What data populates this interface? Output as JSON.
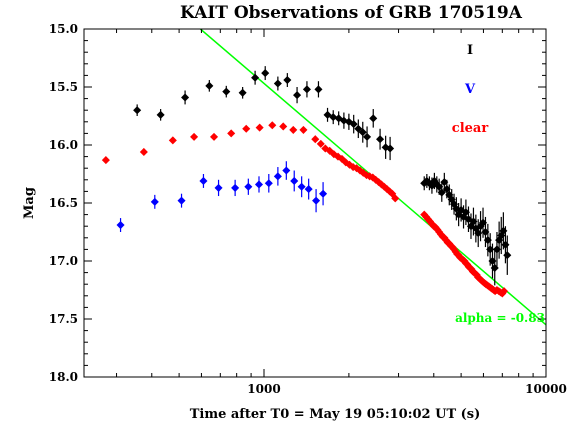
{
  "chart_data": {
    "type": "scatter",
    "title": "KAIT Observations of GRB 170519A",
    "xlabel": "Time after T0 = May 19  05:10:02 UT (s)",
    "ylabel": "Mag",
    "x_scale": "log",
    "xlim": [
      230,
      10000
    ],
    "ylim": [
      18.0,
      15.0
    ],
    "x_tick_labels": [
      {
        "value": 1000,
        "label": "1000"
      },
      {
        "value": 10000,
        "label": "10000"
      }
    ],
    "y_tick_labels": [
      {
        "value": 15.0,
        "label": "15.0"
      },
      {
        "value": 15.5,
        "label": "15.5"
      },
      {
        "value": 16.0,
        "label": "16.0"
      },
      {
        "value": 16.5,
        "label": "16.5"
      },
      {
        "value": 17.0,
        "label": "17.0"
      },
      {
        "value": 17.5,
        "label": "17.5"
      },
      {
        "value": 18.0,
        "label": "18.0"
      }
    ],
    "legend": {
      "placement": "top-right",
      "entries": [
        {
          "label": "I",
          "color": "#000000"
        },
        {
          "label": "V",
          "color": "#0000ff"
        },
        {
          "label": "clear",
          "color": "#ff0000"
        }
      ]
    },
    "series": [
      {
        "name": "I",
        "color": "#000000",
        "points": [
          [
            355,
            15.7,
            0.05
          ],
          [
            430,
            15.74,
            0.05
          ],
          [
            525,
            15.59,
            0.06
          ],
          [
            640,
            15.49,
            0.05
          ],
          [
            735,
            15.54,
            0.05
          ],
          [
            840,
            15.55,
            0.05
          ],
          [
            930,
            15.42,
            0.06
          ],
          [
            1010,
            15.38,
            0.06
          ],
          [
            1120,
            15.47,
            0.06
          ],
          [
            1210,
            15.44,
            0.06
          ],
          [
            1310,
            15.57,
            0.07
          ],
          [
            1420,
            15.52,
            0.07
          ],
          [
            1560,
            15.52,
            0.07
          ],
          [
            1680,
            15.74,
            0.06
          ],
          [
            1760,
            15.76,
            0.06
          ],
          [
            1840,
            15.77,
            0.06
          ],
          [
            1920,
            15.79,
            0.07
          ],
          [
            2000,
            15.8,
            0.07
          ],
          [
            2080,
            15.82,
            0.08
          ],
          [
            2160,
            15.86,
            0.08
          ],
          [
            2240,
            15.89,
            0.09
          ],
          [
            2320,
            15.93,
            0.09
          ],
          [
            2440,
            15.77,
            0.08
          ],
          [
            2580,
            15.95,
            0.09
          ],
          [
            2700,
            16.02,
            0.1
          ],
          [
            2800,
            16.03,
            0.1
          ],
          [
            3700,
            16.33,
            0.06
          ],
          [
            3780,
            16.31,
            0.06
          ],
          [
            3860,
            16.33,
            0.06
          ],
          [
            3940,
            16.35,
            0.07
          ],
          [
            4020,
            16.31,
            0.07
          ],
          [
            4100,
            16.34,
            0.07
          ],
          [
            4180,
            16.36,
            0.07
          ],
          [
            4270,
            16.41,
            0.08
          ],
          [
            4360,
            16.32,
            0.08
          ],
          [
            4450,
            16.38,
            0.08
          ],
          [
            4540,
            16.43,
            0.09
          ],
          [
            4630,
            16.47,
            0.09
          ],
          [
            4720,
            16.51,
            0.09
          ],
          [
            4810,
            16.55,
            0.1
          ],
          [
            4900,
            16.6,
            0.1
          ],
          [
            5000,
            16.56,
            0.1
          ],
          [
            5100,
            16.62,
            0.1
          ],
          [
            5200,
            16.58,
            0.11
          ],
          [
            5310,
            16.64,
            0.11
          ],
          [
            5420,
            16.7,
            0.11
          ],
          [
            5530,
            16.66,
            0.12
          ],
          [
            5640,
            16.72,
            0.12
          ],
          [
            5750,
            16.76,
            0.12
          ],
          [
            5860,
            16.7,
            0.13
          ],
          [
            5980,
            16.67,
            0.13
          ],
          [
            6100,
            16.75,
            0.13
          ],
          [
            6220,
            16.82,
            0.14
          ],
          [
            6340,
            16.9,
            0.14
          ],
          [
            6460,
            17.0,
            0.15
          ],
          [
            6580,
            17.06,
            0.15
          ],
          [
            6700,
            16.9,
            0.15
          ],
          [
            6820,
            16.82,
            0.16
          ],
          [
            6940,
            16.78,
            0.16
          ],
          [
            7060,
            16.74,
            0.16
          ],
          [
            7180,
            16.86,
            0.16
          ],
          [
            7290,
            16.95,
            0.17
          ]
        ]
      },
      {
        "name": "V",
        "color": "#0000ff",
        "points": [
          [
            310,
            16.69,
            0.06
          ],
          [
            410,
            16.49,
            0.06
          ],
          [
            510,
            16.48,
            0.06
          ],
          [
            610,
            16.31,
            0.06
          ],
          [
            690,
            16.37,
            0.07
          ],
          [
            790,
            16.37,
            0.07
          ],
          [
            880,
            16.36,
            0.07
          ],
          [
            960,
            16.34,
            0.07
          ],
          [
            1040,
            16.33,
            0.08
          ],
          [
            1120,
            16.27,
            0.08
          ],
          [
            1200,
            16.22,
            0.08
          ],
          [
            1280,
            16.31,
            0.09
          ],
          [
            1360,
            16.36,
            0.09
          ],
          [
            1440,
            16.38,
            0.09
          ],
          [
            1530,
            16.48,
            0.1
          ],
          [
            1620,
            16.42,
            0.1
          ]
        ]
      },
      {
        "name": "clear",
        "color": "#ff0000",
        "points": [
          [
            275,
            16.13
          ],
          [
            375,
            16.06
          ],
          [
            475,
            15.96
          ],
          [
            565,
            15.93
          ],
          [
            665,
            15.93
          ],
          [
            765,
            15.9
          ],
          [
            865,
            15.86
          ],
          [
            965,
            15.85
          ],
          [
            1070,
            15.83
          ],
          [
            1170,
            15.84
          ],
          [
            1270,
            15.87
          ],
          [
            1380,
            15.87
          ],
          [
            1520,
            15.95
          ],
          [
            1590,
            15.99
          ],
          [
            1650,
            16.03
          ],
          [
            1710,
            16.05
          ],
          [
            1770,
            16.08
          ],
          [
            1830,
            16.1
          ],
          [
            1890,
            16.12
          ],
          [
            1950,
            16.15
          ],
          [
            2010,
            16.17
          ],
          [
            2070,
            16.19
          ],
          [
            2130,
            16.2
          ],
          [
            2190,
            16.22
          ],
          [
            2250,
            16.24
          ],
          [
            2310,
            16.26
          ],
          [
            2370,
            16.27
          ],
          [
            2430,
            16.28
          ],
          [
            2490,
            16.3
          ],
          [
            2550,
            16.32
          ],
          [
            2610,
            16.34
          ],
          [
            2670,
            16.36
          ],
          [
            2730,
            16.38
          ],
          [
            2790,
            16.4
          ],
          [
            2850,
            16.42
          ],
          [
            2920,
            16.46
          ],
          [
            3700,
            16.6
          ],
          [
            3760,
            16.62
          ],
          [
            3820,
            16.64
          ],
          [
            3880,
            16.66
          ],
          [
            3940,
            16.68
          ],
          [
            4000,
            16.7
          ],
          [
            4060,
            16.71
          ],
          [
            4120,
            16.73
          ],
          [
            4180,
            16.75
          ],
          [
            4240,
            16.77
          ],
          [
            4300,
            16.79
          ],
          [
            4360,
            16.8
          ],
          [
            4420,
            16.82
          ],
          [
            4480,
            16.84
          ],
          [
            4540,
            16.85
          ],
          [
            4600,
            16.87
          ],
          [
            4660,
            16.88
          ],
          [
            4720,
            16.9
          ],
          [
            4780,
            16.92
          ],
          [
            4840,
            16.94
          ],
          [
            4900,
            16.95
          ],
          [
            4960,
            16.97
          ],
          [
            5020,
            16.98
          ],
          [
            5080,
            16.99
          ],
          [
            5140,
            17.0
          ],
          [
            5200,
            17.02
          ],
          [
            5260,
            17.03
          ],
          [
            5320,
            17.05
          ],
          [
            5380,
            17.06
          ],
          [
            5440,
            17.07
          ],
          [
            5500,
            17.09
          ],
          [
            5560,
            17.1
          ],
          [
            5620,
            17.11
          ],
          [
            5680,
            17.12
          ],
          [
            5740,
            17.14
          ],
          [
            5800,
            17.15
          ],
          [
            5860,
            17.16
          ],
          [
            5920,
            17.17
          ],
          [
            5980,
            17.18
          ],
          [
            6050,
            17.19
          ],
          [
            6120,
            17.2
          ],
          [
            6200,
            17.21
          ],
          [
            6280,
            17.22
          ],
          [
            6360,
            17.23
          ],
          [
            6440,
            17.24
          ],
          [
            6520,
            17.25
          ],
          [
            6600,
            17.26
          ],
          [
            6700,
            17.25
          ],
          [
            6800,
            17.26
          ],
          [
            6900,
            17.27
          ],
          [
            7000,
            17.28
          ],
          [
            7100,
            17.26
          ]
        ]
      }
    ],
    "fit_line": {
      "label": "alpha = -0.83",
      "color": "#00ff00",
      "points": [
        [
          595,
          15.0
        ],
        [
          10000,
          17.55
        ]
      ]
    }
  }
}
